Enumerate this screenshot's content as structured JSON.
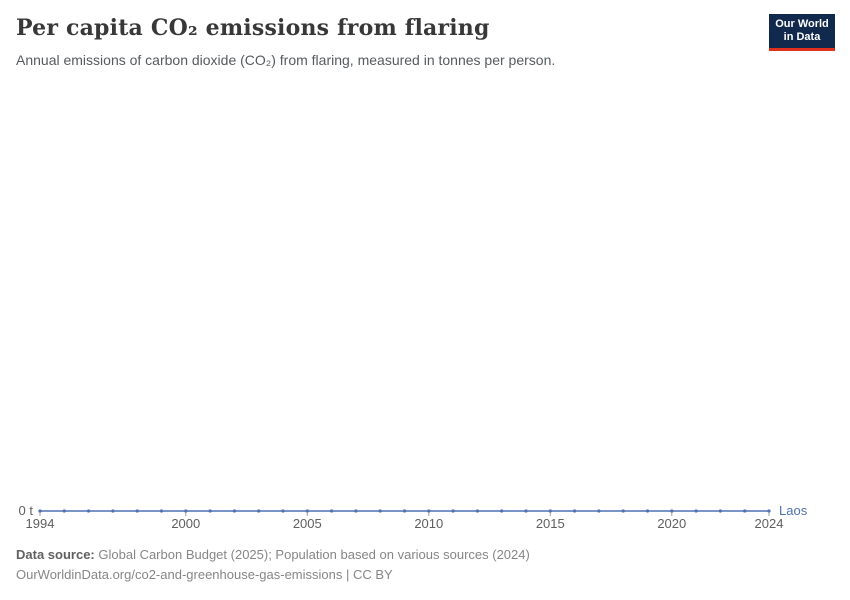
{
  "header": {
    "logo": {
      "line1": "Our World",
      "line2": "in Data",
      "bg_color": "#12294e",
      "accent_color": "#e0301c"
    }
  },
  "chart_data": {
    "type": "line",
    "title": "Per capita CO₂ emissions from flaring",
    "subtitle": "Annual emissions of carbon dioxide (CO₂) from flaring, measured in tonnes per person.",
    "series": [
      {
        "name": "Laos",
        "color": "#4f72b2",
        "x": [
          1994,
          1995,
          1996,
          1997,
          1998,
          1999,
          2000,
          2001,
          2002,
          2003,
          2004,
          2005,
          2006,
          2007,
          2008,
          2009,
          2010,
          2011,
          2012,
          2013,
          2014,
          2015,
          2016,
          2017,
          2018,
          2019,
          2020,
          2021,
          2022,
          2023,
          2024
        ],
        "values": [
          0,
          0,
          0,
          0,
          0,
          0,
          0,
          0,
          0,
          0,
          0,
          0,
          0,
          0,
          0,
          0,
          0,
          0,
          0,
          0,
          0,
          0,
          0,
          0,
          0,
          0,
          0,
          0,
          0,
          0,
          0
        ]
      }
    ],
    "x_ticks": [
      1994,
      2000,
      2005,
      2010,
      2015,
      2020,
      2024
    ],
    "xlim": [
      1994,
      2024
    ],
    "ylim": [
      0,
      0
    ],
    "y_axis_label": "0 t",
    "unit": "t",
    "grid": false,
    "legend_position": "right-of-line-end",
    "tick_color": "#9e9e9e"
  },
  "footer": {
    "datasource_label": "Data source:",
    "datasource_text": "Global Carbon Budget (2025); Population based on various sources (2024)",
    "link_line": "OurWorldinData.org/co2-and-greenhouse-gas-emissions | CC BY"
  }
}
